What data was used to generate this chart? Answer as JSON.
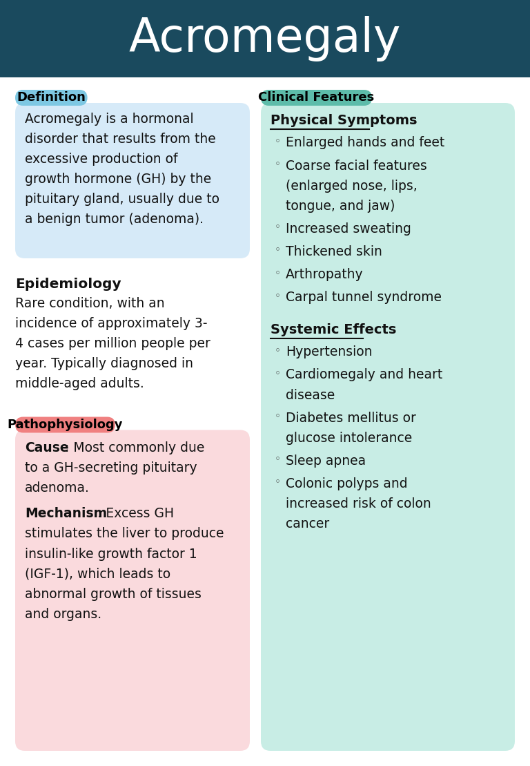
{
  "title": "Acromegaly",
  "title_bg_color": "#1a4a5e",
  "title_text_color": "#ffffff",
  "bg_color": "#ffffff",
  "definition_label": "Definition",
  "definition_label_bg": "#7ec8e3",
  "definition_label_text": "#000000",
  "definition_box_bg": "#d6eaf8",
  "definition_text": "Acromegaly is a hormonal\ndisorder that results from the\nexcessive production of\ngrowth hormone (GH) by the\npituitary gland, usually due to\na benign tumor (adenoma).",
  "epidemiology_title": "Epidemiology",
  "epidemiology_text": "Rare condition, with an\nincidence of approximately 3-\n4 cases per million people per\nyear. Typically diagnosed in\nmiddle-aged adults.",
  "pathophysiology_label": "Pathophysiology",
  "pathophysiology_label_bg": "#f08080",
  "pathophysiology_label_text": "#000000",
  "pathophysiology_box_bg": "#fadadd",
  "pathophysiology_cause_text": [
    [
      "bold",
      "Cause"
    ],
    [
      "normal",
      ": Most commonly due\nto a GH-secreting pituitary\nadenoma."
    ]
  ],
  "pathophysiology_mechanism_text": [
    [
      "bold",
      "Mechanism"
    ],
    [
      "normal",
      ": Excess GH\nstimulates the liver to produce\ninsulin-like growth factor 1\n(IGF-1), which leads to\nabnormal growth of tissues\nand organs."
    ]
  ],
  "clinical_label": "Clinical Features",
  "clinical_label_bg": "#5dbcaa",
  "clinical_label_text": "#000000",
  "clinical_box_bg": "#c8ede5",
  "physical_title": "Physical Symptoms",
  "physical_symptoms": [
    "Enlarged hands and feet",
    "Coarse facial features\n(enlarged nose, lips,\ntongue, and jaw)",
    "Increased sweating",
    "Thickened skin",
    "Arthropathy",
    "Carpal tunnel syndrome"
  ],
  "systemic_title": "Systemic Effects",
  "systemic_effects": [
    "Hypertension",
    "Cardiomegaly and heart\ndisease",
    "Diabetes mellitus or\nglucose intolerance",
    "Sleep apnea",
    "Colonic polyps and\nincreased risk of colon\ncancer"
  ]
}
